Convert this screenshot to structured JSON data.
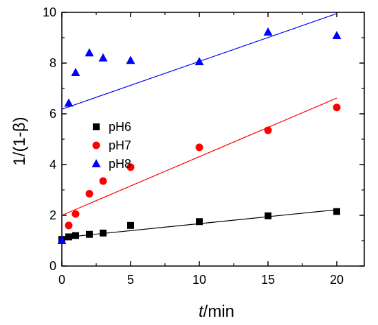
{
  "chart_data": {
    "type": "scatter",
    "xlabel_italic": "t",
    "xlabel_rest": "/min",
    "ylabel": "1/(1-β)",
    "xlim": [
      0,
      22
    ],
    "ylim": [
      0,
      10
    ],
    "x_ticks": [
      0,
      5,
      10,
      15,
      20
    ],
    "x_tick_labels": [
      "0",
      "5",
      "10",
      "15",
      "20"
    ],
    "y_ticks": [
      0,
      2,
      4,
      6,
      8,
      10
    ],
    "y_tick_labels": [
      "0",
      "2",
      "4",
      "6",
      "8",
      "10"
    ],
    "grid": false,
    "legend_position": "middle-left",
    "series": [
      {
        "name": "pH6",
        "marker": "square",
        "color": "#000000",
        "x": [
          0,
          0.5,
          1,
          2,
          3,
          5,
          10,
          15,
          20
        ],
        "y": [
          1.05,
          1.15,
          1.2,
          1.25,
          1.3,
          1.6,
          1.75,
          1.98,
          2.15
        ],
        "fit": [
          [
            0,
            1.12
          ],
          [
            20,
            2.22
          ]
        ],
        "fit_color": "#000000"
      },
      {
        "name": "pH7",
        "marker": "circle",
        "color": "#ff0000",
        "x": [
          0.5,
          1,
          2,
          3,
          5,
          10,
          15,
          20
        ],
        "y": [
          1.6,
          2.05,
          2.85,
          3.35,
          3.9,
          4.68,
          5.35,
          6.25
        ],
        "fit": [
          [
            0,
            2.0
          ],
          [
            20,
            6.62
          ]
        ],
        "fit_color": "#ff0000"
      },
      {
        "name": "pH8",
        "marker": "triangle",
        "color": "#0000ff",
        "x": [
          0,
          0.5,
          1,
          2,
          3,
          5,
          10,
          15,
          20
        ],
        "y": [
          1.0,
          6.42,
          7.62,
          8.4,
          8.2,
          8.1,
          8.05,
          9.22,
          9.08
        ],
        "fit": [
          [
            0,
            6.18
          ],
          [
            20,
            9.95
          ]
        ],
        "fit_color": "#0000ff"
      }
    ]
  }
}
